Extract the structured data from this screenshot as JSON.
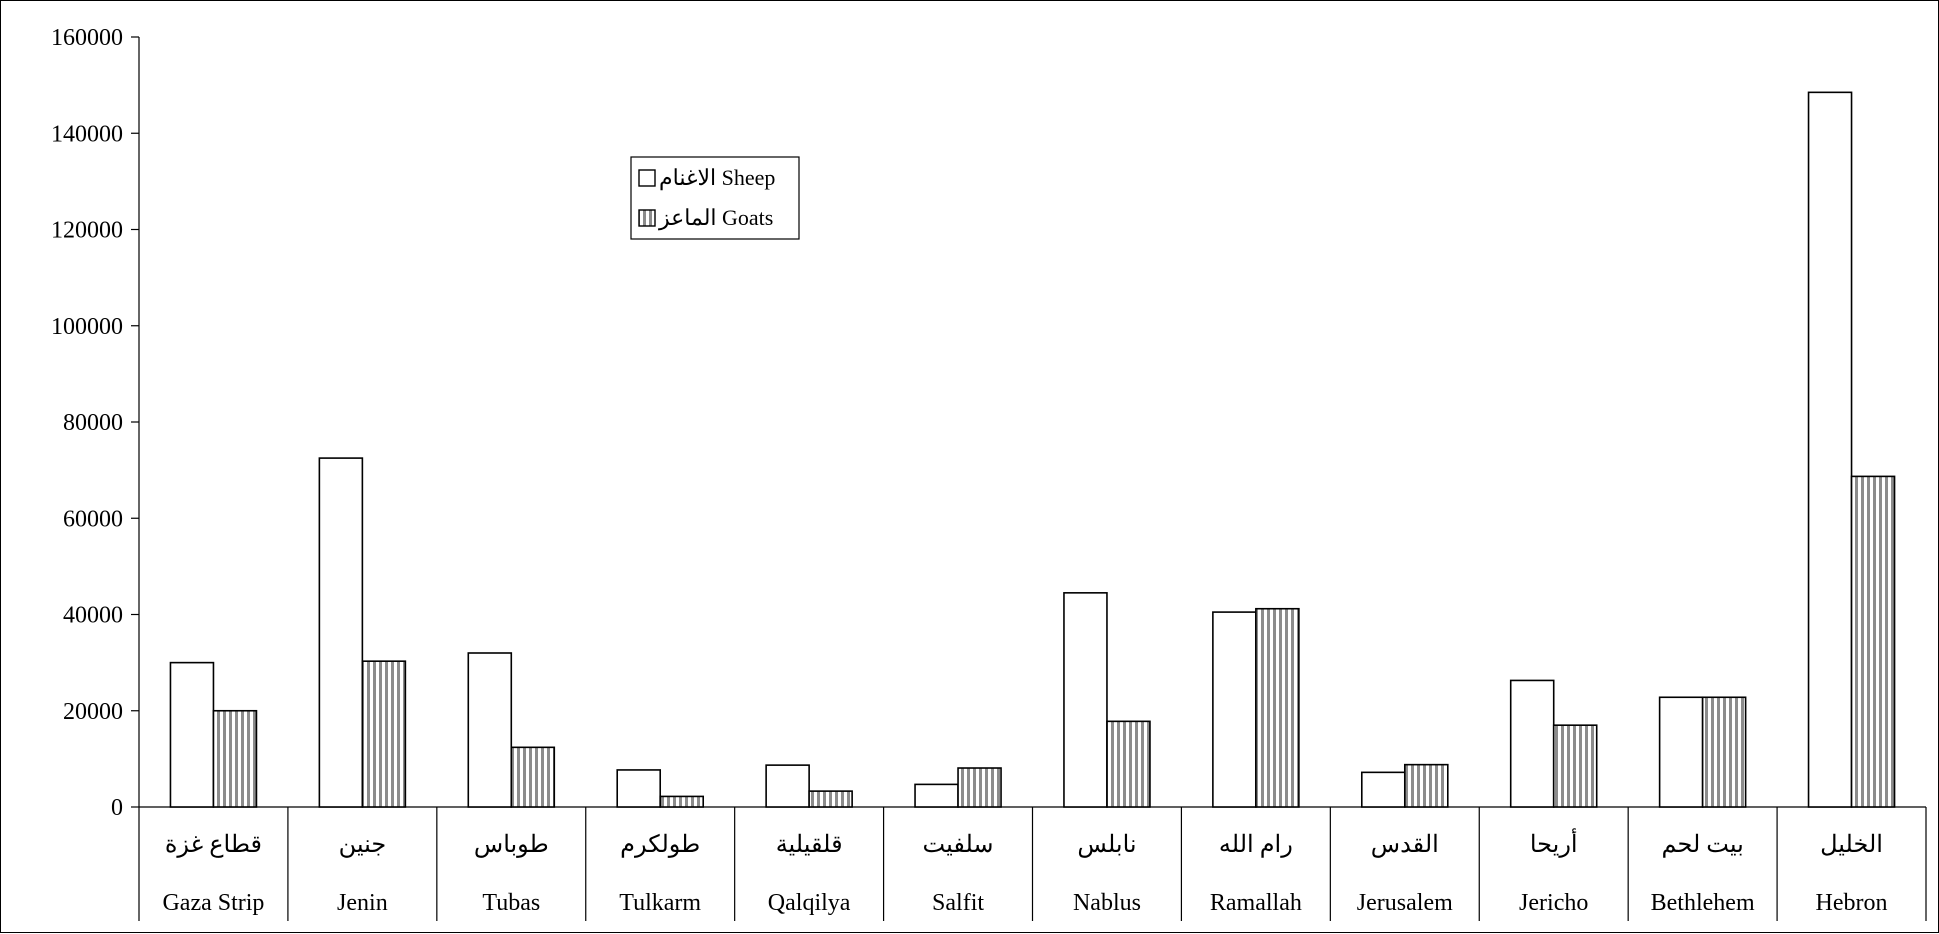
{
  "chart_data": {
    "type": "bar",
    "categories": [
      {
        "en": "Gaza Strip",
        "ar": "قطاع غزة"
      },
      {
        "en": "Jenin",
        "ar": "جنين"
      },
      {
        "en": "Tubas",
        "ar": "طوباس"
      },
      {
        "en": "Tulkarm",
        "ar": "طولكرم"
      },
      {
        "en": "Qalqilya",
        "ar": "قلقيلية"
      },
      {
        "en": "Salfit",
        "ar": "سلفيت"
      },
      {
        "en": "Nablus",
        "ar": "نابلس"
      },
      {
        "en": "Ramallah",
        "ar": "رام الله"
      },
      {
        "en": "Jerusalem",
        "ar": "القدس"
      },
      {
        "en": "Jericho",
        "ar": "أريحا"
      },
      {
        "en": "Bethlehem",
        "ar": "بيت لحم"
      },
      {
        "en": "Hebron",
        "ar": "الخليل"
      }
    ],
    "series": [
      {
        "name": "الاغنام Sheep",
        "pattern": "plain",
        "fill": "#ffffff",
        "values": [
          30000,
          72500,
          32000,
          7700,
          8700,
          4700,
          44500,
          40500,
          7200,
          26300,
          22800,
          148500
        ]
      },
      {
        "name": "الماعز Goats",
        "pattern": "vertical-stripes",
        "fill": "#a6a6a6",
        "values": [
          20000,
          30300,
          12400,
          2200,
          3300,
          8100,
          17800,
          41200,
          8800,
          17000,
          22800,
          68700
        ]
      }
    ],
    "y_ticks": [
      "0",
      "20000",
      "40000",
      "60000",
      "80000",
      "100000",
      "120000",
      "140000",
      "160000"
    ],
    "ylim": [
      0,
      160000
    ],
    "grid": false,
    "legend_position": "upper-left-center"
  }
}
